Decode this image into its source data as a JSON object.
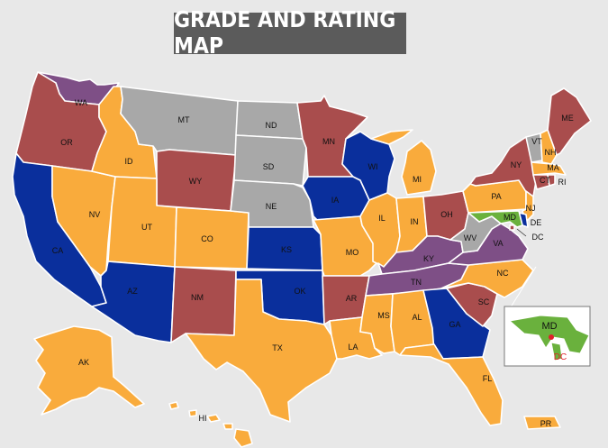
{
  "title": "GRADE AND RATING MAP",
  "colors": {
    "orange": "#f9ab3c",
    "red": "#a94d4d",
    "purple": "#7e4f86",
    "blue": "#0a2f9c",
    "gray": "#a8a8a8",
    "green": "#6ab13d"
  },
  "states": {
    "WA": {
      "label": "WA",
      "color": "purple"
    },
    "OR": {
      "label": "OR",
      "color": "red"
    },
    "CA": {
      "label": "CA",
      "color": "blue"
    },
    "NV": {
      "label": "NV",
      "color": "orange"
    },
    "ID": {
      "label": "ID",
      "color": "orange"
    },
    "MT": {
      "label": "MT",
      "color": "gray"
    },
    "WY": {
      "label": "WY",
      "color": "red"
    },
    "UT": {
      "label": "UT",
      "color": "orange"
    },
    "AZ": {
      "label": "AZ",
      "color": "blue"
    },
    "CO": {
      "label": "CO",
      "color": "orange"
    },
    "NM": {
      "label": "NM",
      "color": "red"
    },
    "ND": {
      "label": "ND",
      "color": "gray"
    },
    "SD": {
      "label": "SD",
      "color": "gray"
    },
    "NE": {
      "label": "NE",
      "color": "gray"
    },
    "KS": {
      "label": "KS",
      "color": "blue"
    },
    "OK": {
      "label": "OK",
      "color": "blue"
    },
    "TX": {
      "label": "TX",
      "color": "orange"
    },
    "MN": {
      "label": "MN",
      "color": "red"
    },
    "IA": {
      "label": "IA",
      "color": "blue"
    },
    "MO": {
      "label": "MO",
      "color": "orange"
    },
    "AR": {
      "label": "AR",
      "color": "red"
    },
    "LA": {
      "label": "LA",
      "color": "orange"
    },
    "WI": {
      "label": "WI",
      "color": "blue"
    },
    "IL": {
      "label": "IL",
      "color": "orange"
    },
    "MI": {
      "label": "MI",
      "color": "orange"
    },
    "IN": {
      "label": "IN",
      "color": "orange"
    },
    "OH": {
      "label": "OH",
      "color": "red"
    },
    "KY": {
      "label": "KY",
      "color": "purple"
    },
    "TN": {
      "label": "TN",
      "color": "purple"
    },
    "MS": {
      "label": "MS",
      "color": "orange"
    },
    "AL": {
      "label": "AL",
      "color": "orange"
    },
    "GA": {
      "label": "GA",
      "color": "blue"
    },
    "FL": {
      "label": "FL",
      "color": "orange"
    },
    "SC": {
      "label": "SC",
      "color": "red"
    },
    "NC": {
      "label": "NC",
      "color": "orange"
    },
    "VA": {
      "label": "VA",
      "color": "purple"
    },
    "WV": {
      "label": "WV",
      "color": "gray"
    },
    "PA": {
      "label": "PA",
      "color": "orange"
    },
    "NY": {
      "label": "NY",
      "color": "red"
    },
    "VT": {
      "label": "VT",
      "color": "gray"
    },
    "NH": {
      "label": "NH",
      "color": "orange"
    },
    "ME": {
      "label": "ME",
      "color": "red"
    },
    "MA": {
      "label": "MA",
      "color": "orange"
    },
    "CT": {
      "label": "CT",
      "color": "red"
    },
    "RI": {
      "label": "RI",
      "color": "red"
    },
    "NJ": {
      "label": "NJ",
      "color": "orange"
    },
    "DE": {
      "label": "DE",
      "color": "blue"
    },
    "MD": {
      "label": "MD",
      "color": "green"
    },
    "DC": {
      "label": "DC",
      "color": "red"
    },
    "AK": {
      "label": "AK",
      "color": "orange"
    },
    "HI": {
      "label": "HI",
      "color": "orange"
    },
    "PR": {
      "label": "PR",
      "color": "orange"
    }
  },
  "inset": {
    "md_label": "MD",
    "dc_label": "DC",
    "dc_color": "#e0202a"
  }
}
